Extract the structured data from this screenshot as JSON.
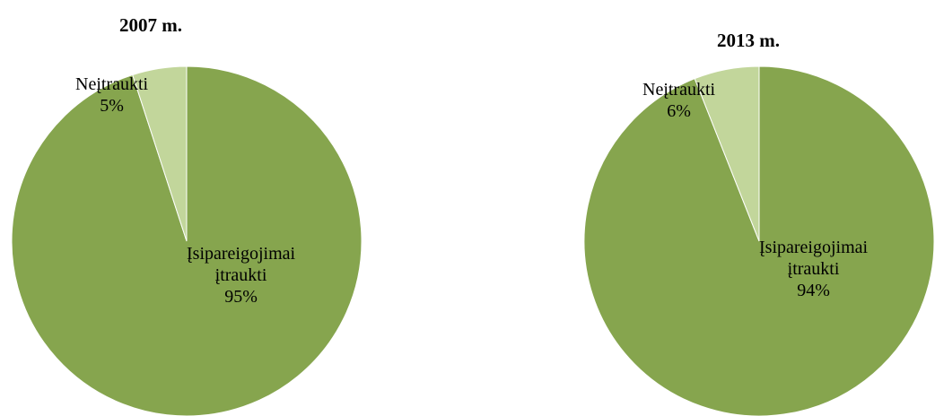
{
  "chart_data": [
    {
      "type": "pie",
      "title": "2007 m.",
      "slices": [
        {
          "label_lines": [
            "Įsipareigojimai",
            "įtraukti"
          ],
          "value": 95,
          "pct_label": "95%",
          "color": "#86a54e"
        },
        {
          "label_lines": [
            "Neįtraukti"
          ],
          "value": 5,
          "pct_label": "5%",
          "color": "#c2d69b"
        }
      ]
    },
    {
      "type": "pie",
      "title": "2013 m.",
      "slices": [
        {
          "label_lines": [
            "Įsipareigojimai",
            "įtraukti"
          ],
          "value": 94,
          "pct_label": "94%",
          "color": "#86a54e"
        },
        {
          "label_lines": [
            "Neįtraukti"
          ],
          "value": 6,
          "pct_label": "6%",
          "color": "#c2d69b"
        }
      ]
    }
  ]
}
